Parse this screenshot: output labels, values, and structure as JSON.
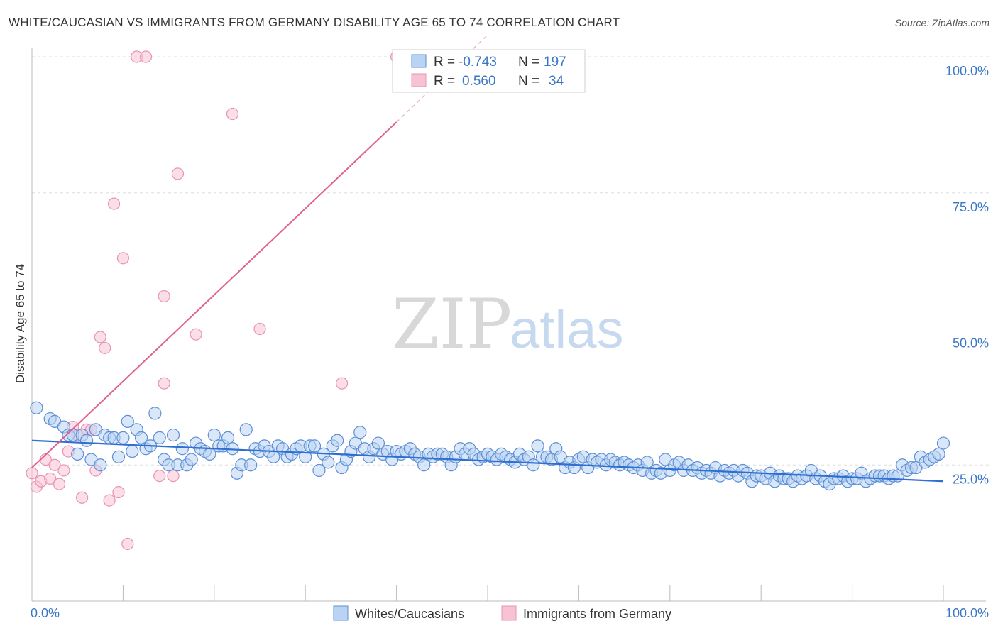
{
  "title": "WHITE/CAUCASIAN VS IMMIGRANTS FROM GERMANY DISABILITY AGE 65 TO 74 CORRELATION CHART",
  "source": "Source: ZipAtlas.com",
  "watermark": {
    "zip": "ZIP",
    "atlas": "atlas"
  },
  "colors": {
    "blue": "#5b8fd6",
    "blue_fill": "#b9d3f3",
    "blue_line": "#2f6fd1",
    "pink": "#e893b0",
    "pink_fill": "#f7c3d4",
    "pink_line": "#e0608e",
    "axis_label": "#3b76c4",
    "grid": "#dddddd"
  },
  "legend": {
    "rows": [
      {
        "r_label": "R =",
        "r_value": "-0.743",
        "n_label": "N =",
        "n_value": "197"
      },
      {
        "r_label": "R =",
        "r_value": "0.560",
        "n_label": "N =",
        "n_value": "34"
      }
    ]
  },
  "chart_data": {
    "type": "scatter",
    "title": "WHITE/CAUCASIAN VS IMMIGRANTS FROM GERMANY DISABILITY AGE 65 TO 74 CORRELATION CHART",
    "xlabel": "",
    "ylabel": "Disability Age 65 to 74",
    "xlim": [
      0,
      100
    ],
    "ylim": [
      0,
      100
    ],
    "x_tick_labels": [
      "0.0%",
      "100.0%"
    ],
    "y_ticks": [
      {
        "value": 25,
        "label": "25.0%"
      },
      {
        "value": 50,
        "label": "50.0%"
      },
      {
        "value": 75,
        "label": "75.0%"
      },
      {
        "value": 100,
        "label": "100.0%"
      }
    ],
    "grid": true,
    "legend_position": "top-center",
    "series": [
      {
        "name": "Whites/Caucasians",
        "color": "#5b8fd6",
        "R": -0.743,
        "N": 197,
        "trend": {
          "x": [
            0,
            100
          ],
          "y": [
            29.5,
            22.0
          ]
        },
        "points": [
          [
            0.5,
            35.5
          ],
          [
            2,
            33.5
          ],
          [
            2.5,
            33
          ],
          [
            3.5,
            32
          ],
          [
            4,
            30.5
          ],
          [
            4.5,
            30.5
          ],
          [
            5,
            27
          ],
          [
            5.5,
            30.5
          ],
          [
            6,
            29.5
          ],
          [
            6.5,
            26
          ],
          [
            7,
            31.5
          ],
          [
            7.5,
            25
          ],
          [
            8,
            30.5
          ],
          [
            8.5,
            30
          ],
          [
            9,
            30
          ],
          [
            9.5,
            26.5
          ],
          [
            10,
            30
          ],
          [
            10.5,
            33
          ],
          [
            11,
            27.5
          ],
          [
            11.5,
            31.5
          ],
          [
            12,
            30
          ],
          [
            12.5,
            28
          ],
          [
            13,
            28.5
          ],
          [
            13.5,
            34.5
          ],
          [
            14,
            30
          ],
          [
            14.5,
            26
          ],
          [
            15,
            25
          ],
          [
            15.5,
            30.5
          ],
          [
            16,
            25
          ],
          [
            16.5,
            28
          ],
          [
            17,
            25
          ],
          [
            17.5,
            26
          ],
          [
            18,
            29
          ],
          [
            18.5,
            28
          ],
          [
            19,
            27.5
          ],
          [
            19.5,
            27
          ],
          [
            20,
            30.5
          ],
          [
            20.5,
            28.5
          ],
          [
            21,
            28.5
          ],
          [
            21.5,
            30
          ],
          [
            22,
            28
          ],
          [
            22.5,
            23.5
          ],
          [
            23,
            25
          ],
          [
            23.5,
            31.5
          ],
          [
            24,
            25
          ],
          [
            24.5,
            28
          ],
          [
            25,
            27.5
          ],
          [
            25.5,
            28.5
          ],
          [
            26,
            27.5
          ],
          [
            26.5,
            26.5
          ],
          [
            27,
            28.5
          ],
          [
            27.5,
            28
          ],
          [
            28,
            26.5
          ],
          [
            28.5,
            27
          ],
          [
            29,
            28
          ],
          [
            29.5,
            28.5
          ],
          [
            30,
            26.5
          ],
          [
            30.5,
            28.5
          ],
          [
            31,
            28.5
          ],
          [
            31.5,
            24
          ],
          [
            32,
            27
          ],
          [
            32.5,
            25.5
          ],
          [
            33,
            28.5
          ],
          [
            33.5,
            29.5
          ],
          [
            34,
            24.5
          ],
          [
            34.5,
            26
          ],
          [
            35,
            27.5
          ],
          [
            35.5,
            29
          ],
          [
            36,
            31
          ],
          [
            36.5,
            28
          ],
          [
            37,
            26.5
          ],
          [
            37.5,
            28
          ],
          [
            38,
            29
          ],
          [
            38.5,
            27
          ],
          [
            39,
            27.5
          ],
          [
            39.5,
            26
          ],
          [
            40,
            27.5
          ],
          [
            40.5,
            27
          ],
          [
            41,
            27.5
          ],
          [
            41.5,
            28
          ],
          [
            42,
            27
          ],
          [
            42.5,
            26.5
          ],
          [
            43,
            25
          ],
          [
            43.5,
            27
          ],
          [
            44,
            26.5
          ],
          [
            44.5,
            27
          ],
          [
            45,
            27
          ],
          [
            45.5,
            26.5
          ],
          [
            46,
            25
          ],
          [
            46.5,
            26.5
          ],
          [
            47,
            28
          ],
          [
            47.5,
            27
          ],
          [
            48,
            28
          ],
          [
            48.5,
            27
          ],
          [
            49,
            26
          ],
          [
            49.5,
            26.5
          ],
          [
            50,
            27
          ],
          [
            50.5,
            26.5
          ],
          [
            51,
            26
          ],
          [
            51.5,
            27
          ],
          [
            52,
            26.5
          ],
          [
            52.5,
            26
          ],
          [
            53,
            25.5
          ],
          [
            53.5,
            27
          ],
          [
            54,
            26
          ],
          [
            54.5,
            26.5
          ],
          [
            55,
            25
          ],
          [
            55.5,
            28.5
          ],
          [
            56,
            26.5
          ],
          [
            56.5,
            26.5
          ],
          [
            57,
            26
          ],
          [
            57.5,
            28
          ],
          [
            58,
            26.5
          ],
          [
            58.5,
            24.5
          ],
          [
            59,
            25.5
          ],
          [
            59.5,
            24.5
          ],
          [
            60,
            26
          ],
          [
            60.5,
            26.5
          ],
          [
            61,
            24.5
          ],
          [
            61.5,
            26
          ],
          [
            62,
            25.5
          ],
          [
            62.5,
            26
          ],
          [
            63,
            25
          ],
          [
            63.5,
            26
          ],
          [
            64,
            25.5
          ],
          [
            64.5,
            25
          ],
          [
            65,
            25.5
          ],
          [
            65.5,
            25
          ],
          [
            66,
            24.5
          ],
          [
            66.5,
            25
          ],
          [
            67,
            24
          ],
          [
            67.5,
            25.5
          ],
          [
            68,
            23.5
          ],
          [
            68.5,
            24
          ],
          [
            69,
            23.5
          ],
          [
            69.5,
            26
          ],
          [
            70,
            24
          ],
          [
            70.5,
            25
          ],
          [
            71,
            25.5
          ],
          [
            71.5,
            24
          ],
          [
            72,
            25
          ],
          [
            72.5,
            24
          ],
          [
            73,
            24.5
          ],
          [
            73.5,
            23.5
          ],
          [
            74,
            24
          ],
          [
            74.5,
            23.5
          ],
          [
            75,
            24.5
          ],
          [
            75.5,
            23
          ],
          [
            76,
            24
          ],
          [
            76.5,
            23.5
          ],
          [
            77,
            24
          ],
          [
            77.5,
            23
          ],
          [
            78,
            24
          ],
          [
            78.5,
            23.5
          ],
          [
            79,
            22
          ],
          [
            79.5,
            23
          ],
          [
            80,
            23
          ],
          [
            80.5,
            22.5
          ],
          [
            81,
            23.5
          ],
          [
            81.5,
            22
          ],
          [
            82,
            23
          ],
          [
            82.5,
            22.5
          ],
          [
            83,
            22.5
          ],
          [
            83.5,
            22
          ],
          [
            84,
            23
          ],
          [
            84.5,
            22.5
          ],
          [
            85,
            23
          ],
          [
            85.5,
            24
          ],
          [
            86,
            22.5
          ],
          [
            86.5,
            23
          ],
          [
            87,
            22
          ],
          [
            87.5,
            21.5
          ],
          [
            88,
            22.5
          ],
          [
            88.5,
            22.5
          ],
          [
            89,
            23
          ],
          [
            89.5,
            22
          ],
          [
            90,
            22.5
          ],
          [
            90.5,
            22.5
          ],
          [
            91,
            23.5
          ],
          [
            91.5,
            22
          ],
          [
            92,
            22.5
          ],
          [
            92.5,
            23
          ],
          [
            93,
            23
          ],
          [
            93.5,
            23
          ],
          [
            94,
            22.5
          ],
          [
            94.5,
            23
          ],
          [
            95,
            23
          ],
          [
            95.5,
            25
          ],
          [
            96,
            24
          ],
          [
            96.5,
            24.5
          ],
          [
            97,
            24.5
          ],
          [
            97.5,
            26.5
          ],
          [
            98,
            25.5
          ],
          [
            98.5,
            26
          ],
          [
            99,
            26.5
          ],
          [
            99.5,
            27
          ],
          [
            100,
            29
          ]
        ]
      },
      {
        "name": "Immigrants from Germany",
        "color": "#e893b0",
        "R": 0.56,
        "N": 34,
        "trend": {
          "x": [
            0,
            40
          ],
          "y": [
            24.5,
            88
          ]
        },
        "trend_dashed": {
          "x": [
            40,
            50
          ],
          "y": [
            88,
            104
          ]
        },
        "points": [
          [
            0,
            23.5
          ],
          [
            0.5,
            21
          ],
          [
            1,
            22
          ],
          [
            1.5,
            26
          ],
          [
            2,
            22.5
          ],
          [
            2.5,
            25
          ],
          [
            3,
            21.5
          ],
          [
            3.5,
            24
          ],
          [
            4,
            27.5
          ],
          [
            4.5,
            32
          ],
          [
            5,
            30.5
          ],
          [
            5.5,
            19
          ],
          [
            6,
            31.5
          ],
          [
            6.5,
            31.5
          ],
          [
            7,
            24
          ],
          [
            7.5,
            48.5
          ],
          [
            8,
            46.5
          ],
          [
            8.5,
            18.5
          ],
          [
            9,
            73
          ],
          [
            9.5,
            20
          ],
          [
            10,
            63
          ],
          [
            10.5,
            10.5
          ],
          [
            11.5,
            100
          ],
          [
            12.5,
            100
          ],
          [
            14,
            23
          ],
          [
            14.5,
            56
          ],
          [
            14.5,
            40
          ],
          [
            15.5,
            23
          ],
          [
            16,
            78.5
          ],
          [
            18,
            49
          ],
          [
            22,
            89.5
          ],
          [
            25,
            50
          ],
          [
            34,
            40
          ],
          [
            40,
            100
          ]
        ]
      }
    ]
  },
  "bottom_legend": [
    {
      "label": "Whites/Caucasians"
    },
    {
      "label": "Immigrants from Germany"
    }
  ]
}
